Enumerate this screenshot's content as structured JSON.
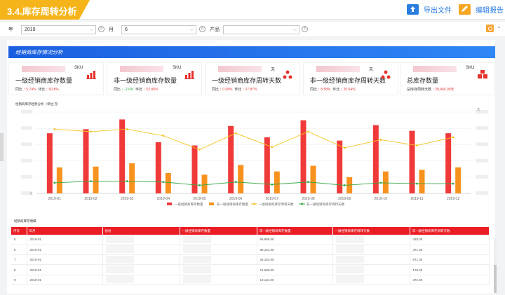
{
  "header": {
    "title": "3.4.库存周转分析",
    "export_label": "导出文件",
    "edit_label": "编辑报告"
  },
  "filters": {
    "year_label": "年",
    "year_value": "2019",
    "month_label": "月",
    "month_value": "6",
    "product_label": "产品",
    "product_value": ""
  },
  "section1": {
    "title": "经销商库存情况分析"
  },
  "kpis": [
    {
      "unit": "SKU",
      "name": "一级经销商库存数量",
      "stat1_label": "同比",
      "stat1_value": "↑ 5.74%",
      "stat1_color": "r",
      "stat2_label": "环比",
      "stat2_value": "↑ 60.8%",
      "stat2_color": "r",
      "icon": "bar-chart-icon"
    },
    {
      "unit": "SKU",
      "name": "非一级经销商库存数量",
      "stat1_label": "同比",
      "stat1_value": "↓ -2.6%",
      "stat1_color": "g",
      "stat2_label": "环比",
      "stat2_value": "↑ 52.80%",
      "stat2_color": "r",
      "icon": "bar-chart-icon"
    },
    {
      "unit": "天",
      "name": "一级经销商库存周转天数",
      "stat1_label": "同比",
      "stat1_value": "↑ 0.08%",
      "stat1_color": "r",
      "stat2_label": "环比",
      "stat2_value": "↑ 27.87%",
      "stat2_color": "r",
      "icon": "cycle-icon"
    },
    {
      "unit": "天",
      "name": "非一级经销商库存周转天数",
      "stat1_label": "同比",
      "stat1_value": "↑ 8.58%",
      "stat1_color": "r",
      "stat2_label": "环比",
      "stat2_value": "↑ 20.54%",
      "stat2_color": "r",
      "icon": "cycle-icon"
    },
    {
      "unit": "SKU",
      "name": "总库存数量",
      "stat1_label": "总库存周转天数",
      "stat1_value": "↑ 28,456.00天",
      "stat1_color": "r",
      "stat2_label": "",
      "stat2_value": "",
      "stat2_color": "r",
      "icon": "boxes-icon"
    }
  ],
  "chart_title": "经销商库存趋势分析（单位:万）",
  "chart_right_unit": "天",
  "chart_data": {
    "type": "bar",
    "categories": [
      "2019-01",
      "2019-02",
      "2019-03",
      "2019-04",
      "2019-05",
      "2019-06",
      "2019-07",
      "2019-08",
      "2019-09",
      "2019-10",
      "2019-11",
      "2019-12"
    ],
    "ylim": [
      0,
      1
    ],
    "y2lim": [
      0,
      1
    ],
    "series": [
      {
        "name": "一级经销商库存数量",
        "kind": "bar",
        "color": "#f03a3a",
        "values": [
          0.74,
          0.79,
          0.91,
          0.63,
          0.59,
          0.83,
          0.69,
          0.9,
          0.65,
          0.84,
          0.77,
          0.74
        ]
      },
      {
        "name": "非一级经销商库存数量",
        "kind": "bar",
        "color": "#f7921e",
        "values": [
          0.32,
          0.33,
          0.37,
          0.25,
          0.23,
          0.35,
          0.27,
          0.34,
          0.2,
          0.27,
          0.29,
          0.32
        ]
      },
      {
        "name": "一级经销商库存周转天数",
        "kind": "line",
        "color": "#f2c521",
        "values": [
          0.79,
          0.76,
          0.79,
          0.71,
          0.54,
          0.74,
          0.57,
          0.76,
          0.56,
          0.66,
          0.59,
          0.69
        ]
      },
      {
        "name": "非一级经销商库存周转天数",
        "kind": "line",
        "color": "#35a845",
        "values": [
          0.13,
          0.15,
          0.15,
          0.14,
          0.1,
          0.14,
          0.11,
          0.14,
          0.1,
          0.13,
          0.12,
          0.12
        ]
      }
    ]
  },
  "table_title": "经销商库存明细",
  "table": {
    "headers": [
      "序号",
      "年月",
      "省份",
      "一级经销商库存数量",
      "非一级经销商库存数量",
      "一级经销商库存周转天数",
      "非一级经销商库存周转天数"
    ],
    "rows": [
      [
        "5",
        "2019-01",
        "",
        "",
        "66,986.00",
        "",
        "428.00"
      ],
      [
        "6",
        "2019-01",
        "",
        "",
        "88,161.00",
        "",
        "371.00"
      ],
      [
        "7",
        "2019-01",
        "",
        "",
        "26,163.00",
        "",
        "671.00"
      ],
      [
        "8",
        "2019-01",
        "",
        "",
        "21,688.00",
        "",
        "178.00"
      ],
      [
        "9",
        "2019-01",
        "",
        "",
        "10,134.00",
        "",
        "372.00"
      ]
    ]
  }
}
